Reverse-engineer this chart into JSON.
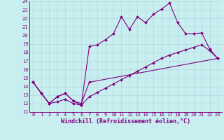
{
  "xlabel": "Windchill (Refroidissement éolien,°C)",
  "bg_color": "#c8eef0",
  "line_color": "#800080",
  "grid_color": "#b0d8dc",
  "xlim": [
    -0.5,
    23.5
  ],
  "ylim": [
    11,
    24
  ],
  "xticks": [
    0,
    1,
    2,
    3,
    4,
    5,
    6,
    7,
    8,
    9,
    10,
    11,
    12,
    13,
    14,
    15,
    16,
    17,
    18,
    19,
    20,
    21,
    22,
    23
  ],
  "yticks": [
    11,
    12,
    13,
    14,
    15,
    16,
    17,
    18,
    19,
    20,
    21,
    22,
    23,
    24
  ],
  "line1_x": [
    0,
    1,
    2,
    3,
    4,
    5,
    6,
    7,
    8,
    9,
    10,
    11,
    12,
    13,
    14,
    15,
    16,
    17,
    18,
    19,
    20,
    21,
    22,
    23
  ],
  "line1_y": [
    14.5,
    13.2,
    12.0,
    12.8,
    13.2,
    12.3,
    11.8,
    18.7,
    18.9,
    19.5,
    20.2,
    22.2,
    20.7,
    22.2,
    21.5,
    22.5,
    23.1,
    23.8,
    21.5,
    20.2,
    20.2,
    20.3,
    18.4,
    17.3
  ],
  "line2_x": [
    0,
    2,
    3,
    4,
    5,
    6,
    7,
    23
  ],
  "line2_y": [
    14.5,
    12.0,
    12.8,
    13.2,
    12.3,
    12.0,
    14.5,
    17.3
  ],
  "line3_x": [
    0,
    1,
    2,
    3,
    4,
    5,
    6,
    7,
    8,
    9,
    10,
    11,
    12,
    13,
    14,
    15,
    16,
    17,
    18,
    19,
    20,
    21,
    22,
    23
  ],
  "line3_y": [
    14.5,
    13.2,
    12.0,
    12.2,
    12.5,
    12.0,
    11.8,
    12.8,
    13.3,
    13.8,
    14.3,
    14.8,
    15.3,
    15.8,
    16.3,
    16.8,
    17.3,
    17.7,
    18.0,
    18.3,
    18.6,
    18.9,
    18.2,
    17.3
  ],
  "markersize": 2.0,
  "linewidth": 0.8,
  "fontsize_label": 6,
  "fontsize_tick": 5
}
